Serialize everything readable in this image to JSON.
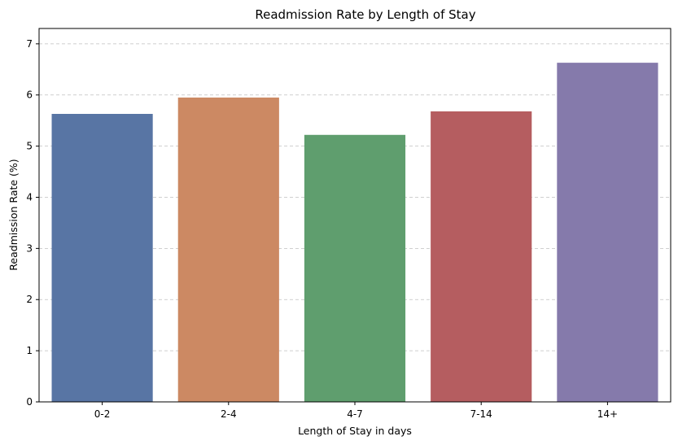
{
  "chart_data": {
    "type": "bar",
    "title": "Readmission Rate by Length of Stay",
    "xlabel": "Length of Stay in days",
    "ylabel": "Readmission Rate (%)",
    "categories": [
      "0-2",
      "2-4",
      "4-7",
      "7-14",
      "14+"
    ],
    "values": [
      5.63,
      5.95,
      5.22,
      5.68,
      6.63
    ],
    "colors": [
      "#5875a4",
      "#cc8963",
      "#5f9e6e",
      "#b55d60",
      "#857aab"
    ],
    "ylim": [
      0,
      7.3
    ],
    "yticks": [
      0,
      1,
      2,
      3,
      4,
      5,
      6,
      7
    ],
    "grid": "y, dashed",
    "legend": "none"
  }
}
